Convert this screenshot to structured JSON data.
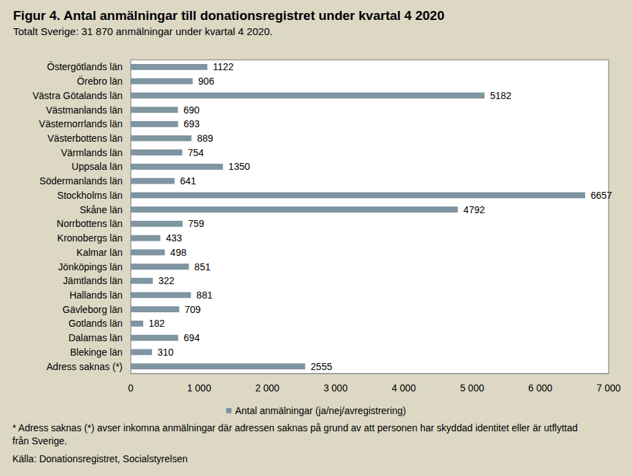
{
  "chart_data": {
    "type": "bar",
    "orientation": "horizontal",
    "title": "Figur 4. Antal anmälningar till donationsregistret under kvartal 4 2020",
    "subtitle": "Totalt Sverige: 31 870 anmälningar under kvartal 4 2020.",
    "categories": [
      "Östergötlands län",
      "Örebro län",
      "Västra Götalands län",
      "Västmanlands län",
      "Västernorrlands län",
      "Västerbottens län",
      "Värmlands län",
      "Uppsala län",
      "Södermanlands län",
      "Stockholms län",
      "Skåne län",
      "Norrbottens län",
      "Kronobergs län",
      "Kalmar län",
      "Jönköpings län",
      "Jämtlands län",
      "Hallands län",
      "Gävleborg län",
      "Gotlands län",
      "Dalarnas län",
      "Blekinge län",
      "Adress saknas (*)"
    ],
    "series": [
      {
        "name": "Antal anmälningar (ja/nej/avregistrering)",
        "color": "#7f95a1",
        "values": [
          1122,
          906,
          5182,
          690,
          693,
          889,
          754,
          1350,
          641,
          6657,
          4792,
          759,
          433,
          498,
          851,
          322,
          881,
          709,
          182,
          694,
          310,
          2555
        ]
      }
    ],
    "xlim": [
      0,
      7000
    ],
    "xticks": [
      0,
      {
        "value": 1000,
        "label": "1 000"
      },
      {
        "value": 2000,
        "label": "2 000"
      },
      {
        "value": 3000,
        "label": "3 000"
      },
      {
        "value": 4000,
        "label": "4 000"
      },
      {
        "value": 5000,
        "label": "5 000"
      },
      {
        "value": 6000,
        "label": "6 000"
      },
      {
        "value": 7000,
        "label": "7 000"
      }
    ],
    "grid": false,
    "legend": "bottom",
    "data_labels": true,
    "annotations": [
      "* Adress saknas (*) avser inkomna anmälningar där adressen saknas på grund av att personen har skyddad identitet eller är utflyttad från Sverige.",
      "Källa: Donationsregistret, Socialstyrelsen"
    ]
  }
}
